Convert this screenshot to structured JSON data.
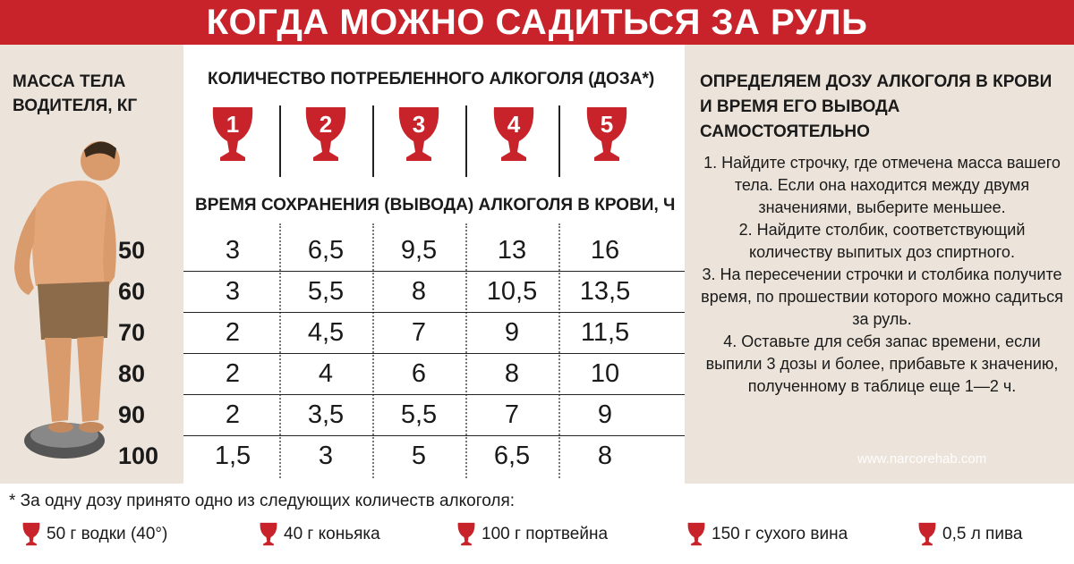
{
  "title": "КОГДА МОЖНО САДИТЬСЯ ЗА РУЛЬ",
  "mass_label": "МАССА ТЕЛА\nВОДИТЕЛЯ, КГ",
  "dose_header": "КОЛИЧЕСТВО ПОТРЕБЛЕННОГО АЛКОГОЛЯ (ДОЗА*)",
  "time_header": "ВРЕМЯ СОХРАНЕНИЯ (ВЫВОДА) АЛКОГОЛЯ В КРОВИ, Ч",
  "doses": [
    "1",
    "2",
    "3",
    "4",
    "5"
  ],
  "table": {
    "masses": [
      "50",
      "60",
      "70",
      "80",
      "90",
      "100"
    ],
    "rows": [
      [
        "3",
        "6,5",
        "9,5",
        "13",
        "16"
      ],
      [
        "3",
        "5,5",
        "8",
        "10,5",
        "13,5"
      ],
      [
        "2",
        "4,5",
        "7",
        "9",
        "11,5"
      ],
      [
        "2",
        "4",
        "6",
        "8",
        "10"
      ],
      [
        "2",
        "3,5",
        "5,5",
        "7",
        "9"
      ],
      [
        "1,5",
        "3",
        "5",
        "6,5",
        "8"
      ]
    ]
  },
  "right": {
    "heading_line1": "ОПРЕДЕЛЯЕМ ДОЗУ АЛКОГОЛЯ В КРОВИ",
    "heading_line2": "И ВРЕМЯ ЕГО ВЫВОДА САМОСТОЯТЕЛЬНО",
    "steps": [
      "1. Найдите строчку, где отмечена масса вашего тела. Если она находится между двумя значениями, выберите меньшее.",
      "2. Найдите столбик, соответствующий количеству выпитых доз спиртного.",
      "3. На пересечении строчки и столбика получите время, по прошествии которого можно садиться за руль.",
      "4. Оставьте для себя запас времени, если выпили 3 дозы и более, прибавьте к значению, полученному в таблице еще 1—2 ч."
    ]
  },
  "watermark": "www.narcorehab.com",
  "footnote": "* За одну дозу принято одно из следующих количеств алкоголя:",
  "dose_items": [
    "50 г водки (40°)",
    "40 г коньяка",
    "100 г портвейна",
    "150 г сухого вина",
    "0,5 л пива"
  ],
  "colors": {
    "accent": "#c8232a",
    "panel": "#ece4da"
  }
}
